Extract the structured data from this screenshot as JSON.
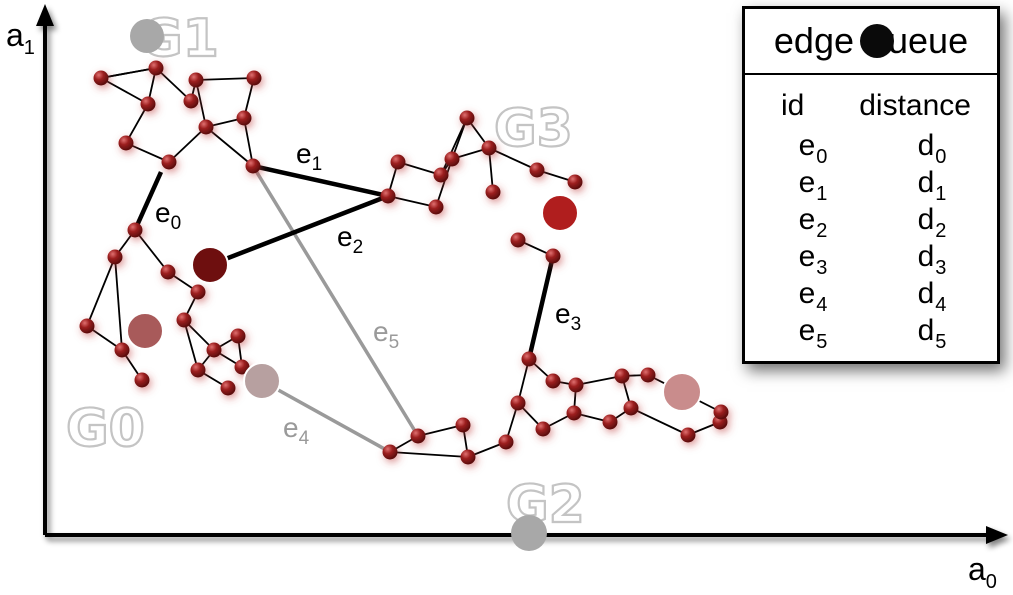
{
  "axes": {
    "x_label": "a",
    "x_sub": "0",
    "y_label": "a",
    "y_sub": "1"
  },
  "clusters": {
    "g0": "G0",
    "g1": "G1",
    "g2": "G2",
    "g3": "G3"
  },
  "edges": {
    "e0": {
      "base": "e",
      "sub": "0"
    },
    "e1": {
      "base": "e",
      "sub": "1"
    },
    "e2": {
      "base": "e",
      "sub": "2"
    },
    "e3": {
      "base": "e",
      "sub": "3"
    },
    "e4": {
      "base": "e",
      "sub": "4"
    },
    "e5": {
      "base": "e",
      "sub": "5"
    }
  },
  "legend": {
    "title_left": "edge",
    "title_right": "ueue",
    "col_id": "id",
    "col_distance": "distance",
    "rows": [
      {
        "id": "e",
        "id_sub": "0",
        "d": "d",
        "d_sub": "0"
      },
      {
        "id": "e",
        "id_sub": "1",
        "d": "d",
        "d_sub": "1"
      },
      {
        "id": "e",
        "id_sub": "2",
        "d": "d",
        "d_sub": "2"
      },
      {
        "id": "e",
        "id_sub": "3",
        "d": "d",
        "d_sub": "3"
      },
      {
        "id": "e",
        "id_sub": "4",
        "d": "d",
        "d_sub": "4"
      },
      {
        "id": "e",
        "id_sub": "5",
        "d": "d",
        "d_sub": "5"
      }
    ]
  },
  "colors": {
    "node": "#8b1a1a",
    "edge_dark": "#000000",
    "edge_gray": "#9a9a9a",
    "cluster_gray": "#c4c4c4",
    "big_dark": "#6e0f0f",
    "big_red": "#b01e1e",
    "big_medium": "#a85a5a",
    "big_light": "#c98c8c",
    "big_pale": "#b7a0a0",
    "centroid_gray": "#a8a8a8"
  }
}
